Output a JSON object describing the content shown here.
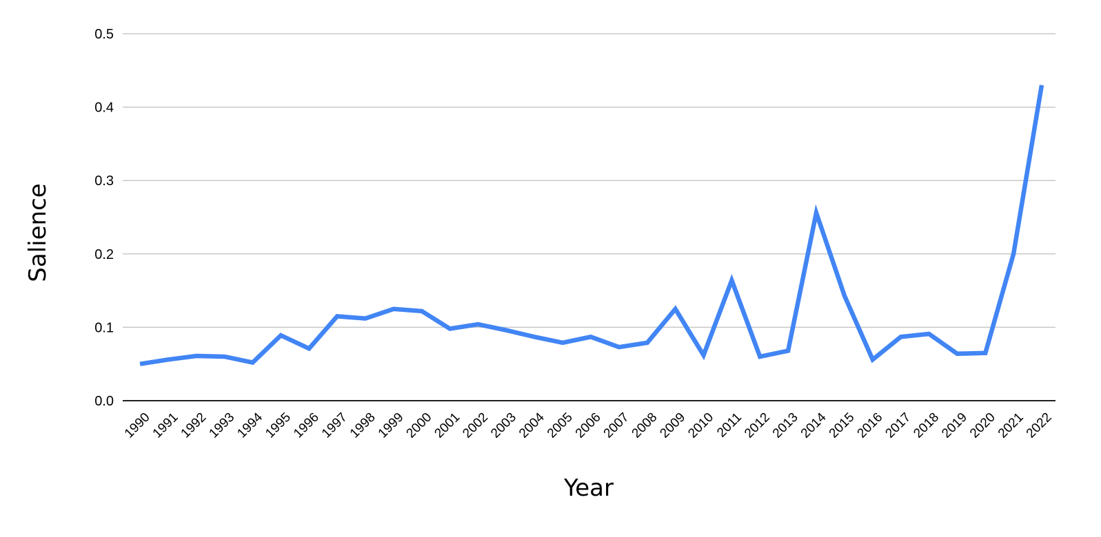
{
  "chart_data": {
    "type": "line",
    "title": "",
    "xlabel": "Year",
    "ylabel": "Salience",
    "ylim": [
      0,
      0.5
    ],
    "yticks": [
      "0.0",
      "0.1",
      "0.2",
      "0.3",
      "0.4",
      "0.5"
    ],
    "ytick_values": [
      0,
      0.1,
      0.2,
      0.3,
      0.4,
      0.5
    ],
    "grid": true,
    "legend": "none",
    "color": "#4285f4",
    "x": [
      "1990",
      "1991",
      "1992",
      "1993",
      "1994",
      "1995",
      "1996",
      "1997",
      "1998",
      "1999",
      "2000",
      "2001",
      "2002",
      "2003",
      "2004",
      "2005",
      "2006",
      "2007",
      "2008",
      "2009",
      "2010",
      "2011",
      "2012",
      "2013",
      "2014",
      "2015",
      "2016",
      "2017",
      "2018",
      "2019",
      "2020",
      "2021",
      "2022"
    ],
    "series": [
      {
        "values": [
          0.05,
          0.056,
          0.061,
          0.06,
          0.052,
          0.089,
          0.071,
          0.115,
          0.112,
          0.125,
          0.122,
          0.098,
          0.104,
          0.096,
          0.087,
          0.079,
          0.087,
          0.073,
          0.079,
          0.125,
          0.062,
          0.164,
          0.06,
          0.068,
          0.256,
          0.143,
          0.056,
          0.087,
          0.091,
          0.064,
          0.065,
          0.2,
          0.43
        ]
      }
    ]
  }
}
